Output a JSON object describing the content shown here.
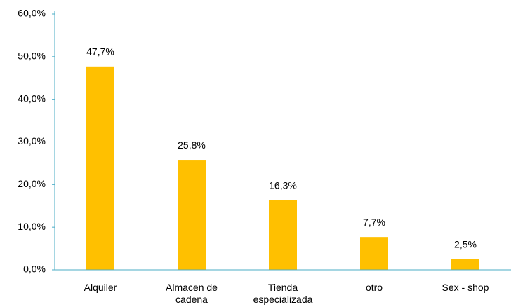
{
  "chart_data": {
    "type": "bar",
    "categories": [
      "Alquiler",
      "Almacen de cadena",
      "Tienda especializada",
      "otro",
      "Sex - shop"
    ],
    "values": [
      47.7,
      25.8,
      16.3,
      7.7,
      2.5
    ],
    "value_labels": [
      "47,7%",
      "25,8%",
      "16,3%",
      "7,7%",
      "2,5%"
    ],
    "color": "#FFC000",
    "ylim": [
      0,
      60
    ],
    "yticks": [
      {
        "value": 0,
        "label": "0,0%"
      },
      {
        "value": 10,
        "label": "10,0%"
      },
      {
        "value": 20,
        "label": "20,0%"
      },
      {
        "value": 30,
        "label": "30,0%"
      },
      {
        "value": 40,
        "label": "40,0%"
      },
      {
        "value": 50,
        "label": "50,0%"
      },
      {
        "value": 60,
        "label": "60,0%"
      }
    ],
    "grid": false
  }
}
